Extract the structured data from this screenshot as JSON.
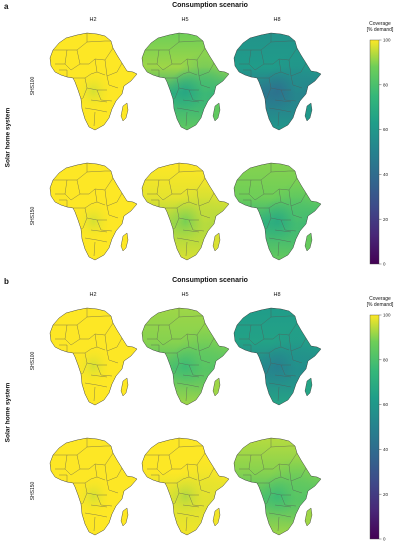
{
  "panels": [
    {
      "letter": "a",
      "title": "Consumption scenario",
      "column_labels": [
        "H2",
        "H5",
        "H8"
      ],
      "row_labels": [
        "SHS100",
        "SHS150"
      ],
      "y_title": "Solar home system",
      "colorbar": {
        "title_line1": "Coverage",
        "title_line2": "[% demand]",
        "ticks": [
          "0",
          "20",
          "40",
          "60",
          "80",
          "100"
        ]
      }
    },
    {
      "letter": "b",
      "title": "Consumption scenario",
      "column_labels": [
        "H2",
        "H5",
        "H8"
      ],
      "row_labels": [
        "SHS100",
        "SHS150"
      ],
      "y_title": "Solar home system",
      "colorbar": {
        "title_line1": "Coverage",
        "title_line2": "[% demand]",
        "ticks": [
          "0",
          "20",
          "40",
          "60",
          "80",
          "100"
        ]
      }
    }
  ],
  "chart_data": [
    {
      "type": "heatmap",
      "panel": "a",
      "title": "Consumption scenario",
      "ylabel": "Solar home system",
      "colormap": "viridis",
      "colorbar_label": "Coverage [% demand]",
      "colorbar_range": [
        0,
        100
      ],
      "legend_position": "right",
      "columns": [
        "H2",
        "H5",
        "H8"
      ],
      "rows": [
        "SHS100",
        "SHS150"
      ],
      "approx_coverage_by_region": [
        {
          "row": "SHS100",
          "column": "H2",
          "north": 100,
          "west": 100,
          "central": 100,
          "east": 100,
          "south": 100
        },
        {
          "row": "SHS100",
          "column": "H5",
          "north": 88,
          "west": 92,
          "central": 70,
          "east": 78,
          "south": 85
        },
        {
          "row": "SHS100",
          "column": "H8",
          "north": 58,
          "west": 62,
          "central": 45,
          "east": 55,
          "south": 60
        },
        {
          "row": "SHS150",
          "column": "H2",
          "north": 100,
          "west": 100,
          "central": 100,
          "east": 100,
          "south": 100
        },
        {
          "row": "SHS150",
          "column": "H5",
          "north": 100,
          "west": 98,
          "central": 92,
          "east": 95,
          "south": 97
        },
        {
          "row": "SHS150",
          "column": "H8",
          "north": 90,
          "west": 88,
          "central": 72,
          "east": 80,
          "south": 86
        }
      ]
    },
    {
      "type": "heatmap",
      "panel": "b",
      "title": "Consumption scenario",
      "ylabel": "Solar home system",
      "colormap": "viridis",
      "colorbar_label": "Coverage [% demand]",
      "colorbar_range": [
        0,
        100
      ],
      "legend_position": "right",
      "columns": [
        "H2",
        "H5",
        "H8"
      ],
      "rows": [
        "SHS100",
        "SHS150"
      ],
      "approx_coverage_by_region": [
        {
          "row": "SHS100",
          "column": "H2",
          "north": 100,
          "west": 100,
          "central": 100,
          "east": 100,
          "south": 100
        },
        {
          "row": "SHS100",
          "column": "H5",
          "north": 92,
          "west": 90,
          "central": 80,
          "east": 84,
          "south": 92
        },
        {
          "row": "SHS100",
          "column": "H8",
          "north": 62,
          "west": 65,
          "central": 52,
          "east": 58,
          "south": 66
        },
        {
          "row": "SHS150",
          "column": "H2",
          "north": 100,
          "west": 100,
          "central": 100,
          "east": 100,
          "south": 100
        },
        {
          "row": "SHS150",
          "column": "H5",
          "north": 100,
          "west": 100,
          "central": 97,
          "east": 98,
          "south": 99
        },
        {
          "row": "SHS150",
          "column": "H8",
          "north": 94,
          "west": 90,
          "central": 80,
          "east": 84,
          "south": 92
        }
      ]
    }
  ]
}
